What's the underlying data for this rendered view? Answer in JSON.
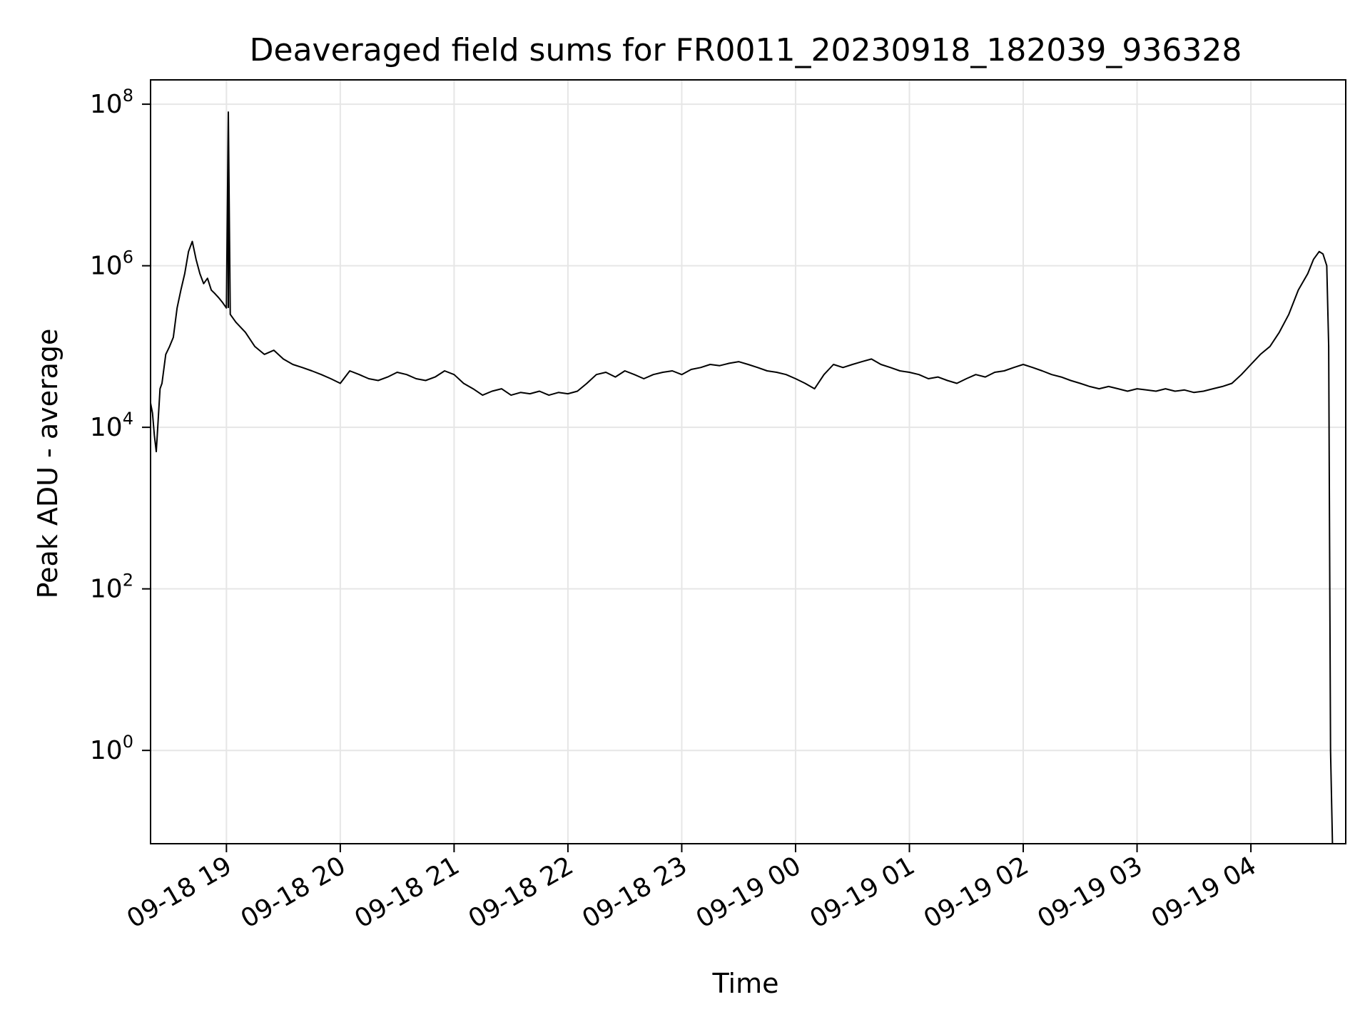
{
  "chart_data": {
    "type": "line",
    "title": "Deaveraged field sums for FR0011_20230918_182039_936328",
    "xlabel": "Time",
    "ylabel": "Peak ADU - average",
    "yscale": "log",
    "ylim": [
      0.07,
      200000000
    ],
    "xlim": [
      "2023-09-18 18:20",
      "2023-09-19 04:50"
    ],
    "grid": true,
    "line_color": "#000000",
    "grid_color": "#e6e6e6",
    "x_ticks": [
      {
        "value": "2023-09-18 19:00",
        "label": "09-18 19"
      },
      {
        "value": "2023-09-18 20:00",
        "label": "09-18 20"
      },
      {
        "value": "2023-09-18 21:00",
        "label": "09-18 21"
      },
      {
        "value": "2023-09-18 22:00",
        "label": "09-18 22"
      },
      {
        "value": "2023-09-18 23:00",
        "label": "09-18 23"
      },
      {
        "value": "2023-09-19 00:00",
        "label": "09-19 00"
      },
      {
        "value": "2023-09-19 01:00",
        "label": "09-19 01"
      },
      {
        "value": "2023-09-19 02:00",
        "label": "09-19 02"
      },
      {
        "value": "2023-09-19 03:00",
        "label": "09-19 03"
      },
      {
        "value": "2023-09-19 04:00",
        "label": "09-19 04"
      }
    ],
    "y_ticks": [
      {
        "value": 1,
        "base": "10",
        "exp": "0"
      },
      {
        "value": 100,
        "base": "10",
        "exp": "2"
      },
      {
        "value": 10000,
        "base": "10",
        "exp": "4"
      },
      {
        "value": 1000000,
        "base": "10",
        "exp": "6"
      },
      {
        "value": 100000000,
        "base": "10",
        "exp": "8"
      }
    ],
    "series": [
      {
        "x": [
          "2023-09-18 18:20",
          "2023-09-18 18:21",
          "2023-09-18 18:22",
          "2023-09-18 18:23",
          "2023-09-18 18:24",
          "2023-09-18 18:25",
          "2023-09-18 18:26",
          "2023-09-18 18:28",
          "2023-09-18 18:30",
          "2023-09-18 18:32",
          "2023-09-18 18:34",
          "2023-09-18 18:36",
          "2023-09-18 18:38",
          "2023-09-18 18:40",
          "2023-09-18 18:42",
          "2023-09-18 18:44",
          "2023-09-18 18:46",
          "2023-09-18 18:48",
          "2023-09-18 18:50",
          "2023-09-18 18:52",
          "2023-09-18 18:54",
          "2023-09-18 18:56",
          "2023-09-18 18:58",
          "2023-09-18 19:00",
          "2023-09-18 19:01",
          "2023-09-18 19:02",
          "2023-09-18 19:05",
          "2023-09-18 19:10",
          "2023-09-18 19:15",
          "2023-09-18 19:20",
          "2023-09-18 19:25",
          "2023-09-18 19:30",
          "2023-09-18 19:35",
          "2023-09-18 19:40",
          "2023-09-18 19:45",
          "2023-09-18 19:50",
          "2023-09-18 19:55",
          "2023-09-18 20:00",
          "2023-09-18 20:05",
          "2023-09-18 20:10",
          "2023-09-18 20:15",
          "2023-09-18 20:20",
          "2023-09-18 20:25",
          "2023-09-18 20:30",
          "2023-09-18 20:35",
          "2023-09-18 20:40",
          "2023-09-18 20:45",
          "2023-09-18 20:50",
          "2023-09-18 20:55",
          "2023-09-18 21:00",
          "2023-09-18 21:05",
          "2023-09-18 21:10",
          "2023-09-18 21:15",
          "2023-09-18 21:20",
          "2023-09-18 21:25",
          "2023-09-18 21:30",
          "2023-09-18 21:35",
          "2023-09-18 21:40",
          "2023-09-18 21:45",
          "2023-09-18 21:50",
          "2023-09-18 21:55",
          "2023-09-18 22:00",
          "2023-09-18 22:05",
          "2023-09-18 22:10",
          "2023-09-18 22:15",
          "2023-09-18 22:20",
          "2023-09-18 22:25",
          "2023-09-18 22:30",
          "2023-09-18 22:35",
          "2023-09-18 22:40",
          "2023-09-18 22:45",
          "2023-09-18 22:50",
          "2023-09-18 22:55",
          "2023-09-18 23:00",
          "2023-09-18 23:05",
          "2023-09-18 23:10",
          "2023-09-18 23:15",
          "2023-09-18 23:20",
          "2023-09-18 23:25",
          "2023-09-18 23:30",
          "2023-09-18 23:35",
          "2023-09-18 23:40",
          "2023-09-18 23:45",
          "2023-09-18 23:50",
          "2023-09-18 23:55",
          "2023-09-19 00:00",
          "2023-09-19 00:05",
          "2023-09-19 00:10",
          "2023-09-19 00:15",
          "2023-09-19 00:20",
          "2023-09-19 00:25",
          "2023-09-19 00:30",
          "2023-09-19 00:35",
          "2023-09-19 00:40",
          "2023-09-19 00:45",
          "2023-09-19 00:50",
          "2023-09-19 00:55",
          "2023-09-19 01:00",
          "2023-09-19 01:05",
          "2023-09-19 01:10",
          "2023-09-19 01:15",
          "2023-09-19 01:20",
          "2023-09-19 01:25",
          "2023-09-19 01:30",
          "2023-09-19 01:35",
          "2023-09-19 01:40",
          "2023-09-19 01:45",
          "2023-09-19 01:50",
          "2023-09-19 01:55",
          "2023-09-19 02:00",
          "2023-09-19 02:05",
          "2023-09-19 02:10",
          "2023-09-19 02:15",
          "2023-09-19 02:20",
          "2023-09-19 02:25",
          "2023-09-19 02:30",
          "2023-09-19 02:35",
          "2023-09-19 02:40",
          "2023-09-19 02:45",
          "2023-09-19 02:50",
          "2023-09-19 02:55",
          "2023-09-19 03:00",
          "2023-09-19 03:05",
          "2023-09-19 03:10",
          "2023-09-19 03:15",
          "2023-09-19 03:20",
          "2023-09-19 03:25",
          "2023-09-19 03:30",
          "2023-09-19 03:35",
          "2023-09-19 03:40",
          "2023-09-19 03:45",
          "2023-09-19 03:50",
          "2023-09-19 03:55",
          "2023-09-19 04:00",
          "2023-09-19 04:05",
          "2023-09-19 04:10",
          "2023-09-19 04:15",
          "2023-09-19 04:20",
          "2023-09-19 04:25",
          "2023-09-19 04:30",
          "2023-09-19 04:33",
          "2023-09-19 04:36",
          "2023-09-19 04:38",
          "2023-09-19 04:40",
          "2023-09-19 04:41",
          "2023-09-19 04:42",
          "2023-09-19 04:43"
        ],
        "y": [
          20000,
          15000,
          8000,
          5000,
          12000,
          30000,
          35000,
          80000,
          100000,
          130000,
          300000,
          500000,
          800000,
          1500000,
          2000000,
          1200000,
          800000,
          600000,
          700000,
          500000,
          450000,
          400000,
          350000,
          300000,
          80000000,
          250000,
          200000,
          150000,
          100000,
          80000,
          90000,
          70000,
          60000,
          55000,
          50000,
          45000,
          40000,
          35000,
          50000,
          45000,
          40000,
          38000,
          42000,
          48000,
          45000,
          40000,
          38000,
          42000,
          50000,
          45000,
          35000,
          30000,
          25000,
          28000,
          30000,
          25000,
          27000,
          26000,
          28000,
          25000,
          27000,
          26000,
          28000,
          35000,
          45000,
          48000,
          42000,
          50000,
          45000,
          40000,
          45000,
          48000,
          50000,
          45000,
          52000,
          55000,
          60000,
          58000,
          62000,
          65000,
          60000,
          55000,
          50000,
          48000,
          45000,
          40000,
          35000,
          30000,
          45000,
          60000,
          55000,
          60000,
          65000,
          70000,
          60000,
          55000,
          50000,
          48000,
          45000,
          40000,
          42000,
          38000,
          35000,
          40000,
          45000,
          42000,
          48000,
          50000,
          55000,
          60000,
          55000,
          50000,
          45000,
          42000,
          38000,
          35000,
          32000,
          30000,
          32000,
          30000,
          28000,
          30000,
          29000,
          28000,
          30000,
          28000,
          29000,
          27000,
          28000,
          30000,
          32000,
          35000,
          45000,
          60000,
          80000,
          100000,
          150000,
          250000,
          500000,
          800000,
          1200000,
          1500000,
          1400000,
          1000000,
          100000,
          1,
          0.07
        ]
      }
    ],
    "spikes": [
      {
        "x": "2023-09-18 19:01",
        "y": 80000000
      }
    ]
  }
}
